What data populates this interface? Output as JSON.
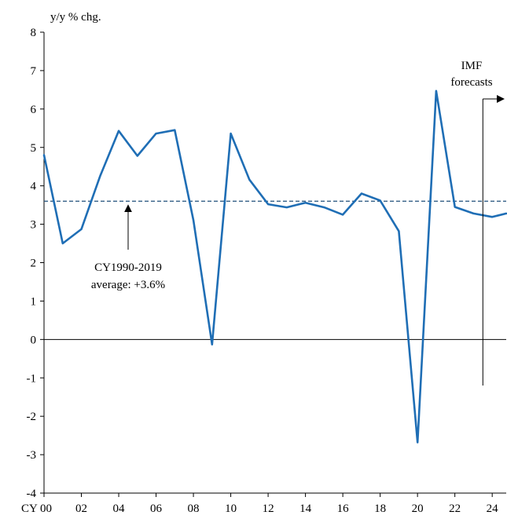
{
  "chart_data": {
    "type": "line",
    "ylabel": "y/y % chg.",
    "ylim": [
      -4,
      8
    ],
    "yticks": [
      8,
      7,
      6,
      5,
      4,
      3,
      2,
      1,
      0,
      -1,
      -2,
      -3,
      -4
    ],
    "ytick_labels": [
      "8",
      "7",
      "6",
      "5",
      "4",
      "3",
      "2",
      "1",
      "0",
      "-1",
      "-2",
      "-3",
      "-4"
    ],
    "xlim": [
      2000,
      2024.75
    ],
    "xticks": [
      2000,
      2002,
      2004,
      2006,
      2008,
      2010,
      2012,
      2014,
      2016,
      2018,
      2020,
      2022,
      2024
    ],
    "xtick_labels": [
      "CY 00",
      "02",
      "04",
      "06",
      "08",
      "10",
      "12",
      "14",
      "16",
      "18",
      "20",
      "22",
      "24"
    ],
    "series": [
      {
        "color": "#1f6eb5",
        "x": [
          2000,
          2001,
          2002,
          2003,
          2004,
          2005,
          2006,
          2007,
          2008,
          2009,
          2010,
          2011,
          2012,
          2013,
          2014,
          2015,
          2016,
          2017,
          2018,
          2019,
          2020,
          2021,
          2022,
          2023,
          2024,
          2024.75
        ],
        "values": [
          4.8,
          2.5,
          2.87,
          4.25,
          5.43,
          4.78,
          5.36,
          5.45,
          3.1,
          -0.13,
          5.36,
          4.16,
          3.52,
          3.44,
          3.56,
          3.44,
          3.25,
          3.8,
          3.62,
          2.82,
          -2.68,
          6.47,
          3.45,
          3.28,
          3.19,
          3.28
        ]
      }
    ],
    "reference_line": {
      "value": 3.6,
      "style": "dashed",
      "color": "#1f4e7a"
    },
    "zero_line": true,
    "annotations": {
      "average": {
        "lines": [
          "CY1990-2019",
          "average: +3.6%"
        ]
      },
      "forecast": {
        "lines": [
          "IMF",
          "forecasts"
        ],
        "start_x": 2023.5
      }
    },
    "grid": false,
    "legend": "none"
  }
}
